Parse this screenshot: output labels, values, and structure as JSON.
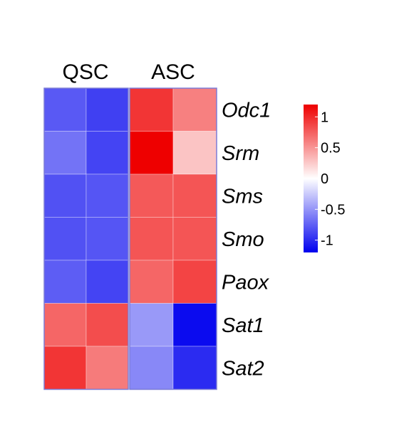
{
  "chart_data": {
    "type": "heatmap",
    "column_groups": [
      {
        "label": "QSC",
        "columns": 2
      },
      {
        "label": "ASC",
        "columns": 2
      }
    ],
    "rows": [
      "Odc1",
      "Srm",
      "Sms",
      "Smo",
      "Paox",
      "Sat1",
      "Sat2"
    ],
    "values": [
      [
        -0.78,
        -0.9,
        0.95,
        0.6
      ],
      [
        -0.66,
        -0.88,
        1.2,
        0.28
      ],
      [
        -0.82,
        -0.8,
        0.78,
        0.8
      ],
      [
        -0.82,
        -0.8,
        0.8,
        0.8
      ],
      [
        -0.76,
        -0.88,
        0.72,
        0.88
      ],
      [
        0.72,
        0.84,
        -0.48,
        -1.15
      ],
      [
        0.95,
        0.62,
        -0.56,
        -1.0
      ]
    ],
    "color_scale": {
      "min": -1.2,
      "max": 1.2,
      "low_color": "#0000ee",
      "mid_color": "#ffffff",
      "high_color": "#ee0000",
      "ticks": [
        1,
        0.5,
        0,
        -0.5,
        -1
      ],
      "tick_labels": [
        "1",
        "0.5",
        "0",
        "-0.5",
        "-1"
      ]
    }
  }
}
